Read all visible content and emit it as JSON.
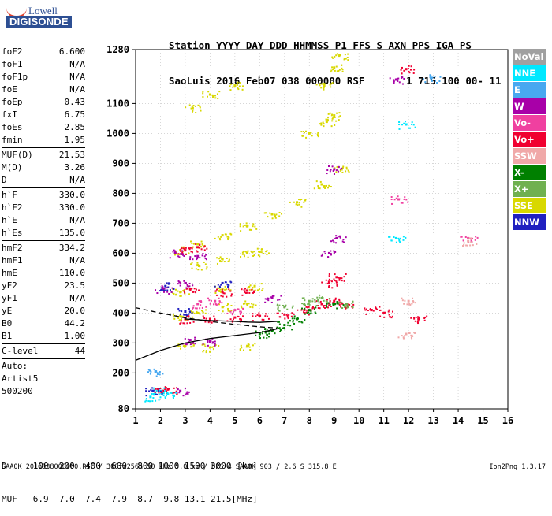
{
  "logo": {
    "line1": "Lowell",
    "line2": "DIGISONDE"
  },
  "header": {
    "labels": [
      "Station",
      "YYYY",
      "DAY",
      "DDD",
      "HHMMSS",
      "P1",
      "FFS",
      "S",
      "AXN",
      "PPS",
      "IGA",
      "PS"
    ],
    "values": [
      "SaoLuis",
      "2016",
      "Feb07",
      "038",
      "000000",
      "RSF",
      "",
      "1",
      "715",
      "100",
      "00-",
      "11"
    ]
  },
  "params": {
    "group1": [
      {
        "label": "foF2",
        "value": "6.600"
      },
      {
        "label": "foF1",
        "value": "N/A"
      },
      {
        "label": "foF1p",
        "value": "N/A"
      },
      {
        "label": "foE",
        "value": "N/A"
      },
      {
        "label": "foEp",
        "value": "0.43"
      },
      {
        "label": "fxI",
        "value": "6.75"
      },
      {
        "label": "foEs",
        "value": "2.85"
      },
      {
        "label": "fmin",
        "value": "1.95"
      }
    ],
    "group2": [
      {
        "label": "MUF(D)",
        "value": "21.53"
      },
      {
        "label": "M(D)",
        "value": "3.26"
      },
      {
        "label": "D",
        "value": "N/A"
      }
    ],
    "group3": [
      {
        "label": "h`F",
        "value": "330.0"
      },
      {
        "label": "h`F2",
        "value": "330.0"
      },
      {
        "label": "h`E",
        "value": "N/A"
      },
      {
        "label": "h`Es",
        "value": "135.0"
      }
    ],
    "group4": [
      {
        "label": "hmF2",
        "value": "334.2"
      },
      {
        "label": "hmF1",
        "value": "N/A"
      },
      {
        "label": "hmE",
        "value": "110.0"
      },
      {
        "label": "yF2",
        "value": "23.5"
      },
      {
        "label": "yF1",
        "value": "N/A"
      },
      {
        "label": "yE",
        "value": "20.0"
      },
      {
        "label": "B0",
        "value": "44.2"
      },
      {
        "label": "B1",
        "value": "1.00"
      }
    ],
    "clevel": {
      "label": "C-level",
      "value": "44"
    },
    "notes": [
      "Auto:",
      "Artist5",
      "500200"
    ]
  },
  "legend": [
    {
      "label": "NoVal",
      "color": "#a0a0a0"
    },
    {
      "label": "NNE",
      "color": "#00e8ff"
    },
    {
      "label": "E",
      "color": "#48a8f0"
    },
    {
      "label": "W",
      "color": "#a800a8"
    },
    {
      "label": "Vo-",
      "color": "#f040a0"
    },
    {
      "label": "Vo+",
      "color": "#f00030"
    },
    {
      "label": "SSW",
      "color": "#f0a8a8"
    },
    {
      "label": "X-",
      "color": "#008000"
    },
    {
      "label": "X+",
      "color": "#70b050"
    },
    {
      "label": "SSE",
      "color": "#d8d800"
    },
    {
      "label": "NNW",
      "color": "#2020c0"
    }
  ],
  "chart_data": {
    "type": "scatter",
    "xlabel": "",
    "ylabel": "",
    "xlim": [
      1,
      16
    ],
    "ylim": [
      80,
      1280
    ],
    "x_ticks": [
      1,
      2,
      3,
      4,
      5,
      6,
      7,
      8,
      9,
      10,
      11,
      12,
      13,
      14,
      15,
      16
    ],
    "y_ticks": [
      80,
      200,
      300,
      400,
      500,
      600,
      700,
      800,
      900,
      1000,
      1100,
      1280
    ],
    "grid": "dotted",
    "series": [
      {
        "name": "SSE",
        "color": "#d8d800",
        "points": [
          [
            2.8,
            610
          ],
          [
            3.5,
            630
          ],
          [
            4.5,
            660
          ],
          [
            5.5,
            690
          ],
          [
            6.5,
            730
          ],
          [
            7.5,
            770
          ],
          [
            8.5,
            830
          ],
          [
            9.3,
            880
          ],
          [
            2.8,
            390
          ],
          [
            3.5,
            400
          ],
          [
            4.5,
            420
          ],
          [
            5.5,
            430
          ],
          [
            3.5,
            560
          ],
          [
            4.5,
            580
          ],
          [
            5.5,
            600
          ],
          [
            6.0,
            605
          ],
          [
            3.3,
            1085
          ],
          [
            4.0,
            1130
          ],
          [
            5.0,
            1160
          ],
          [
            8.6,
            1160
          ],
          [
            9.0,
            1220
          ],
          [
            9.2,
            1260
          ],
          [
            8.0,
            1000
          ],
          [
            8.7,
            1040
          ],
          [
            9.0,
            1060
          ],
          [
            2.8,
            470
          ],
          [
            4.5,
            480
          ],
          [
            5.8,
            490
          ],
          [
            3.0,
            290
          ],
          [
            4.0,
            285
          ],
          [
            5.5,
            290
          ]
        ]
      },
      {
        "name": "Vo+",
        "color": "#f00030",
        "points": [
          [
            3.0,
            380
          ],
          [
            4.0,
            380
          ],
          [
            5.0,
            385
          ],
          [
            6.0,
            390
          ],
          [
            7.0,
            395
          ],
          [
            7.8,
            410
          ],
          [
            8.5,
            430
          ],
          [
            9.0,
            440
          ],
          [
            9.5,
            430
          ],
          [
            10.5,
            410
          ],
          [
            11.0,
            400
          ],
          [
            3.2,
            480
          ],
          [
            4.5,
            470
          ],
          [
            5.5,
            475
          ],
          [
            3.0,
            610
          ],
          [
            3.5,
            620
          ],
          [
            8.8,
            500
          ],
          [
            9.1,
            520
          ],
          [
            11.9,
            1215
          ],
          [
            12.4,
            380
          ],
          [
            1.9,
            145
          ],
          [
            2.3,
            145
          ]
        ]
      },
      {
        "name": "W",
        "color": "#a800a8",
        "points": [
          [
            2.1,
            480
          ],
          [
            3.0,
            500
          ],
          [
            3.2,
            310
          ],
          [
            4.0,
            305
          ],
          [
            2.6,
            600
          ],
          [
            3.5,
            590
          ],
          [
            6.5,
            450
          ],
          [
            8.8,
            600
          ],
          [
            9.1,
            650
          ],
          [
            9.0,
            880
          ],
          [
            11.5,
            1180
          ],
          [
            2.8,
            140
          ]
        ]
      },
      {
        "name": "Vo-",
        "color": "#f040a0",
        "points": [
          [
            3.5,
            430
          ],
          [
            4.2,
            440
          ],
          [
            5.0,
            410
          ],
          [
            11.6,
            780
          ],
          [
            14.4,
            650
          ]
        ]
      },
      {
        "name": "NNE",
        "color": "#00e8ff",
        "points": [
          [
            1.6,
            120
          ],
          [
            2.0,
            140
          ],
          [
            2.3,
            130
          ],
          [
            11.9,
            1030
          ],
          [
            11.5,
            650
          ]
        ]
      },
      {
        "name": "E",
        "color": "#48a8f0",
        "points": [
          [
            12.9,
            1185
          ],
          [
            1.8,
            205
          ]
        ]
      },
      {
        "name": "NNW",
        "color": "#2020c0",
        "points": [
          [
            2.2,
            490
          ],
          [
            3.0,
            405
          ],
          [
            4.5,
            500
          ],
          [
            1.7,
            140
          ]
        ]
      },
      {
        "name": "X-",
        "color": "#008000",
        "points": [
          [
            6.5,
            340
          ],
          [
            7.0,
            360
          ],
          [
            7.5,
            380
          ],
          [
            8.0,
            410
          ],
          [
            9.0,
            430
          ],
          [
            6.0,
            330
          ]
        ]
      },
      {
        "name": "X+",
        "color": "#70b050",
        "points": [
          [
            7.0,
            420
          ],
          [
            8.0,
            440
          ],
          [
            8.5,
            450
          ],
          [
            9.5,
            430
          ]
        ]
      },
      {
        "name": "SSW",
        "color": "#f0a8a8",
        "points": [
          [
            14.4,
            640
          ],
          [
            12.0,
            440
          ],
          [
            11.9,
            330
          ]
        ]
      }
    ],
    "curves": [
      {
        "style": "solid",
        "points": [
          [
            1.0,
            242
          ],
          [
            2.0,
            275
          ],
          [
            3.0,
            300
          ],
          [
            4.0,
            315
          ],
          [
            5.0,
            325
          ],
          [
            6.0,
            335
          ],
          [
            6.7,
            347
          ]
        ]
      },
      {
        "style": "dashed",
        "points": [
          [
            1.0,
            418
          ],
          [
            2.0,
            400
          ],
          [
            3.0,
            384
          ],
          [
            4.0,
            372
          ],
          [
            5.0,
            362
          ],
          [
            6.0,
            354
          ],
          [
            6.7,
            350
          ]
        ]
      },
      {
        "style": "solid",
        "points": [
          [
            3.0,
            380
          ],
          [
            4.0,
            375
          ],
          [
            5.0,
            372
          ],
          [
            5.5,
            370
          ],
          [
            6.0,
            369
          ],
          [
            6.7,
            372
          ]
        ]
      }
    ]
  },
  "footer": {
    "d_label": "D",
    "d_values": [
      "100",
      "200",
      "400",
      "600",
      "800",
      "1000",
      "1500",
      "3000",
      "[km]"
    ],
    "muf_label": "MUF",
    "muf_values": [
      "6.9",
      "7.0",
      "7.4",
      "7.9",
      "8.7",
      "9.8",
      "13.1",
      "21.5",
      "[MHz]"
    ],
    "bottom_text": "SAA0K_2016038000000.RSF / 300fx256h 50 kHz 5.0 km / DPS-4 SAA0K 903 / 2.6 S 315.8 E",
    "version": "Ion2Png 1.3.17"
  }
}
